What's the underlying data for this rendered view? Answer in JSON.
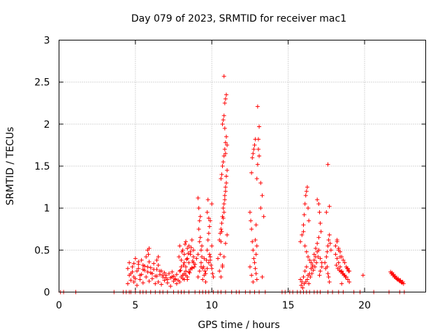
{
  "chart_data": {
    "type": "scatter",
    "title": "Day 079 of 2023, SRMTID for receiver mac1",
    "xlabel": "GPS time / hours",
    "ylabel": "SRMTID / TECUs",
    "xlim": [
      0,
      24
    ],
    "ylim": [
      0,
      3
    ],
    "xticks": [
      0,
      5,
      10,
      15,
      20
    ],
    "yticks": [
      0,
      0.5,
      1,
      1.5,
      2,
      2.5,
      3
    ],
    "xtick_labels": [
      "0",
      "5",
      "10",
      "15",
      "20"
    ],
    "ytick_labels": [
      "0",
      "0.5",
      "1",
      "1.5",
      "2",
      "2.5",
      "3"
    ],
    "grid": true,
    "marker": "+",
    "marker_color": "#ff0000",
    "series": [
      {
        "name": "SRMTID",
        "x": [
          0.1,
          0.3,
          1.1,
          3.6,
          4.2,
          4.4,
          4.6,
          4.7,
          5.0,
          5.3,
          5.5,
          5.7,
          6.0,
          6.3,
          6.6,
          6.8,
          7.1,
          7.5,
          7.8,
          8.0,
          8.2,
          8.5,
          8.9,
          9.2,
          9.4,
          9.6,
          9.8,
          10.1,
          10.4,
          10.6,
          10.9,
          11.3,
          11.6,
          11.8,
          12.2,
          12.5,
          12.8,
          13.1,
          13.5,
          14.6,
          14.8,
          15.1,
          15.3,
          15.6,
          15.8,
          16.0,
          16.2,
          16.4,
          16.7,
          16.9,
          17.1,
          17.6,
          17.9,
          18.3,
          18.6,
          19.3,
          19.7,
          20.6,
          21.6,
          22.3,
          22.6,
          4.5,
          4.6,
          4.7,
          4.8,
          4.9,
          5.0,
          5.1,
          5.2,
          5.3,
          5.4,
          5.5,
          5.6,
          5.7,
          5.8,
          5.9,
          6.0,
          6.1,
          6.2,
          6.3,
          6.4,
          6.5,
          6.6,
          6.7,
          6.8,
          6.9,
          7.0,
          7.1,
          7.2,
          7.3,
          7.4,
          7.5,
          7.6,
          7.7,
          7.8,
          4.5,
          4.7,
          4.9,
          5.1,
          5.3,
          5.5,
          5.7,
          5.9,
          6.1,
          6.3,
          6.5,
          6.7,
          6.9,
          7.1,
          7.3,
          7.5,
          7.7,
          4.6,
          4.8,
          5.0,
          5.2,
          5.4,
          5.6,
          5.8,
          6.0,
          6.2,
          6.4,
          6.6,
          6.8,
          7.0,
          7.2,
          7.4,
          7.6,
          5.8,
          5.85,
          5.9,
          6.4,
          6.5,
          4.9,
          5.2,
          5.5,
          7.9,
          8.0,
          8.1,
          8.2,
          8.3,
          8.4,
          8.5,
          8.6,
          8.7,
          8.8,
          8.9,
          9.0,
          7.9,
          8.0,
          8.1,
          8.2,
          8.3,
          8.4,
          8.5,
          8.6,
          8.7,
          8.8,
          7.9,
          8.0,
          8.1,
          8.2,
          8.3,
          8.4,
          8.5,
          8.6,
          8.7,
          8.8,
          7.85,
          7.95,
          8.05,
          8.15,
          8.25,
          8.35,
          8.45,
          8.55,
          8.65,
          8.75,
          8.85,
          8.1,
          8.2,
          8.3,
          8.4,
          9.1,
          9.2,
          9.3,
          9.4,
          9.5,
          9.6,
          9.7,
          9.8,
          9.9,
          10.0,
          9.1,
          9.2,
          9.3,
          9.4,
          9.5,
          9.6,
          9.7,
          9.8,
          9.9,
          10.0,
          9.15,
          9.25,
          9.35,
          9.45,
          9.55,
          9.65,
          9.75,
          9.85,
          9.1,
          9.15,
          9.2,
          9.25,
          9.3,
          9.35,
          9.7,
          9.75,
          9.8,
          9.85,
          9.9,
          9.95,
          10.0,
          10.05,
          10.1,
          10.4,
          10.5,
          10.55,
          10.6,
          10.65,
          10.7,
          10.75,
          10.8,
          10.85,
          10.9,
          10.55,
          10.6,
          10.65,
          10.7,
          10.75,
          10.8,
          10.85,
          10.9,
          10.95,
          11.0,
          10.6,
          10.65,
          10.7,
          10.75,
          10.8,
          10.85,
          10.9,
          10.95,
          11.0,
          10.7,
          10.75,
          10.8,
          10.85,
          10.9,
          10.95,
          10.8,
          10.85,
          10.9,
          10.95,
          10.5,
          10.6,
          10.7,
          10.8,
          10.9,
          11.0,
          12.5,
          12.55,
          12.6,
          12.65,
          12.7,
          12.75,
          12.8,
          12.85,
          12.9,
          12.95,
          12.6,
          12.65,
          12.7,
          12.75,
          12.8,
          12.85,
          12.9,
          12.95,
          12.5,
          12.6,
          12.7,
          12.85,
          12.9,
          12.95,
          13.0,
          13.05,
          13.1,
          13.2,
          13.3,
          13.4,
          13.0,
          13.05,
          13.1,
          13.2,
          13.3,
          15.8,
          15.9,
          16.0,
          16.1,
          16.2,
          16.3,
          16.4,
          16.5,
          16.6,
          16.7,
          16.8,
          16.9,
          17.0,
          17.1,
          17.2,
          15.8,
          15.9,
          16.0,
          16.1,
          16.2,
          16.3,
          16.4,
          16.5,
          16.6,
          16.7,
          16.8,
          16.9,
          17.0,
          17.1,
          17.2,
          15.85,
          15.95,
          16.05,
          16.15,
          16.25,
          16.35,
          16.45,
          16.55,
          16.65,
          16.75,
          16.85,
          16.95,
          17.05,
          16.0,
          16.05,
          16.1,
          16.15,
          16.2,
          16.25,
          16.3,
          16.35,
          16.9,
          17.0,
          17.05,
          17.1,
          17.15,
          17.4,
          17.5,
          17.55,
          17.6,
          17.65,
          17.7,
          17.75,
          17.8,
          17.45,
          17.55,
          17.6,
          17.65,
          17.7,
          17.6,
          17.7,
          17.5,
          18.1,
          18.2,
          18.3,
          18.4,
          18.5,
          18.6,
          18.7,
          18.8,
          18.9,
          19.0,
          18.1,
          18.2,
          18.3,
          18.4,
          18.5,
          18.6,
          18.7,
          18.8,
          18.9,
          19.0,
          18.15,
          18.25,
          18.35,
          18.45,
          18.55,
          18.65,
          18.75,
          18.85,
          18.95,
          18.2,
          18.3,
          18.4,
          18.5,
          19.9,
          21.7,
          21.75,
          21.8,
          21.85,
          21.9,
          21.95,
          22.0,
          22.05,
          22.1,
          22.15,
          22.2,
          22.25,
          22.3,
          22.35,
          22.4,
          22.45,
          22.5,
          22.55
        ],
        "y": [
          0,
          0,
          0,
          0,
          0,
          0,
          0,
          0,
          0,
          0,
          0,
          0,
          0,
          0,
          0,
          0,
          0,
          0,
          0,
          0,
          0,
          0,
          0,
          0,
          0,
          0,
          0,
          0,
          0,
          0,
          0,
          0,
          0,
          0,
          0,
          0,
          0,
          0,
          0,
          0,
          0,
          0,
          0,
          0,
          0,
          0,
          0,
          0,
          0,
          0,
          0,
          0,
          0,
          0,
          0,
          0,
          0,
          0,
          0,
          0,
          0,
          0.28,
          0.35,
          0.22,
          0.3,
          0.18,
          0.4,
          0.25,
          0.33,
          0.2,
          0.38,
          0.27,
          0.31,
          0.42,
          0.24,
          0.36,
          0.29,
          0.22,
          0.34,
          0.19,
          0.27,
          0.32,
          0.21,
          0.25,
          0.18,
          0.23,
          0.2,
          0.15,
          0.22,
          0.17,
          0.24,
          0.19,
          0.16,
          0.21,
          0.14,
          0.1,
          0.14,
          0.12,
          0.08,
          0.15,
          0.11,
          0.18,
          0.13,
          0.16,
          0.1,
          0.12,
          0.09,
          0.14,
          0.11,
          0.07,
          0.13,
          0.1,
          0.2,
          0.24,
          0.16,
          0.28,
          0.21,
          0.26,
          0.3,
          0.23,
          0.27,
          0.19,
          0.25,
          0.2,
          0.17,
          0.22,
          0.18,
          0.15,
          0.5,
          0.45,
          0.52,
          0.38,
          0.42,
          0.34,
          0.36,
          0.32,
          0.25,
          0.38,
          0.2,
          0.45,
          0.3,
          0.52,
          0.35,
          0.48,
          0.28,
          0.42,
          0.33,
          0.4,
          0.55,
          0.18,
          0.5,
          0.22,
          0.6,
          0.15,
          0.55,
          0.27,
          0.62,
          0.35,
          0.12,
          0.3,
          0.16,
          0.35,
          0.2,
          0.4,
          0.24,
          0.45,
          0.29,
          0.5,
          0.42,
          0.26,
          0.48,
          0.32,
          0.57,
          0.39,
          0.46,
          0.23,
          0.53,
          0.37,
          0.3,
          0.2,
          0.15,
          0.25,
          0.18,
          0.45,
          0.6,
          0.35,
          0.28,
          0.4,
          0.22,
          0.5,
          0.7,
          0.85,
          1.05,
          0.18,
          0.25,
          0.3,
          0.15,
          0.2,
          0.12,
          0.28,
          0.35,
          0.42,
          0.55,
          0.75,
          0.9,
          0.55,
          0.3,
          0.25,
          0.38,
          0.62,
          0.78,
          1.12,
          1.0,
          0.85,
          0.65,
          0.5,
          0.42,
          0.95,
          1.1,
          0.88,
          0.45,
          0.38,
          0.32,
          0.28,
          0.22,
          0.18,
          0.4,
          0.62,
          0.7,
          0.75,
          0.82,
          0.9,
          1.0,
          1.05,
          1.1,
          1.2,
          0.45,
          0.6,
          0.72,
          0.3,
          0.88,
          0.95,
          1.15,
          1.25,
          1.3,
          1.45,
          1.35,
          1.4,
          1.5,
          1.55,
          1.62,
          1.7,
          1.78,
          1.85,
          1.75,
          2.0,
          2.05,
          2.1,
          2.25,
          2.3,
          2.35,
          2.57,
          1.95,
          1.65,
          1.38,
          0.25,
          0.18,
          0.32,
          0.42,
          0.58,
          0.68,
          0.95,
          0.85,
          0.75,
          0.6,
          0.5,
          0.4,
          0.35,
          0.28,
          0.22,
          0.15,
          1.42,
          1.6,
          1.65,
          1.7,
          1.75,
          1.82,
          0.45,
          0.55,
          0.3,
          0.2,
          0.12,
          0.62,
          0.8,
          1.35,
          1.52,
          1.7,
          1.97,
          1.0,
          1.15,
          0.9,
          2.21,
          1.82,
          1.62,
          1.3,
          0.18,
          0.6,
          0.68,
          0.72,
          0.55,
          0.48,
          0.42,
          0.38,
          0.35,
          0.3,
          0.45,
          0.52,
          0.58,
          0.65,
          0.4,
          0.35,
          0.15,
          0.12,
          0.18,
          0.25,
          0.3,
          0.2,
          0.22,
          0.28,
          0.32,
          0.38,
          0.42,
          0.48,
          0.5,
          0.25,
          0.3,
          0.08,
          0.05,
          0.1,
          0.12,
          0.15,
          0.1,
          0.18,
          0.22,
          0.26,
          0.3,
          0.35,
          0.42,
          0.2,
          0.8,
          0.92,
          1.05,
          1.15,
          1.2,
          1.25,
          1.0,
          0.85,
          1.1,
          1.05,
          0.95,
          0.82,
          0.72,
          0.35,
          0.42,
          0.48,
          0.55,
          0.62,
          0.68,
          0.58,
          0.5,
          0.28,
          0.3,
          0.22,
          0.18,
          0.12,
          1.52,
          1.02,
          0.95,
          0.55,
          0.6,
          0.52,
          0.48,
          0.42,
          0.38,
          0.35,
          0.3,
          0.28,
          0.25,
          0.45,
          0.4,
          0.35,
          0.3,
          0.25,
          0.22,
          0.2,
          0.18,
          0.15,
          0.12,
          0.32,
          0.28,
          0.26,
          0.24,
          0.22,
          0.2,
          0.18,
          0.28,
          0.25,
          0.62,
          0.5,
          0.42,
          0.1,
          0.2,
          0.24,
          0.22,
          0.23,
          0.2,
          0.21,
          0.18,
          0.19,
          0.17,
          0.16,
          0.15,
          0.16,
          0.14,
          0.13,
          0.14,
          0.12,
          0.11,
          0.12,
          0.1
        ]
      }
    ]
  }
}
